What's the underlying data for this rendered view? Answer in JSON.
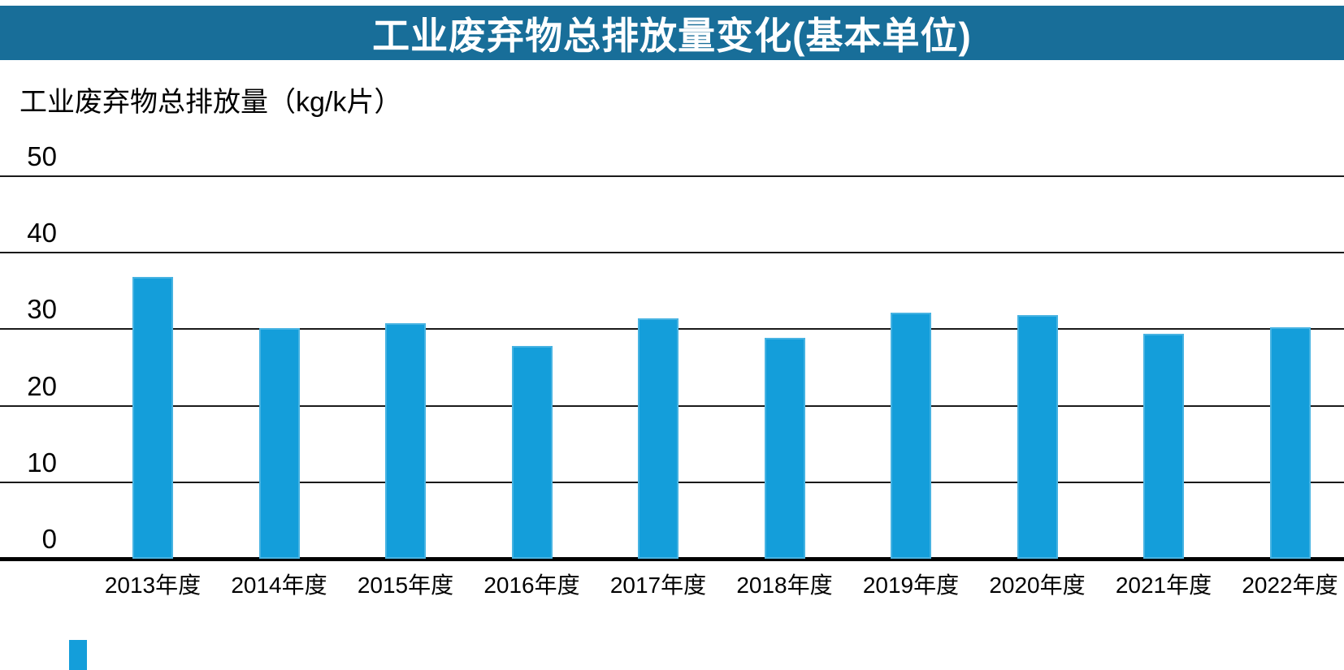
{
  "title_bar": {
    "text": "工业废弃物总排放量变化(基本单位)",
    "bg_color": "#186E99",
    "text_color": "#FFFFFF"
  },
  "chart_data": {
    "type": "bar",
    "title": "工业废弃物总排放量变化(基本单位)",
    "unit_label": "工业废弃物总排放量（kg/k片）",
    "categories": [
      "2013年度",
      "2014年度",
      "2015年度",
      "2016年度",
      "2017年度",
      "2018年度",
      "2019年度",
      "2020年度",
      "2021年度",
      "2022年度"
    ],
    "values": [
      36.8,
      30.1,
      30.8,
      27.8,
      31.4,
      28.9,
      32.2,
      31.9,
      29.4,
      30.3
    ],
    "ylabel": "工业废弃物总排放量（kg/k片）",
    "xlabel": "",
    "ylim": [
      0,
      50
    ],
    "yticks": [
      0,
      10,
      20,
      30,
      40,
      50
    ],
    "bar_color": "#149EDA",
    "gridline_color": "#1A1A1A",
    "axis_color": "#000000",
    "grid": true,
    "legend": false
  },
  "decoration": {
    "bottom_left_mark_color": "#149EDA"
  }
}
